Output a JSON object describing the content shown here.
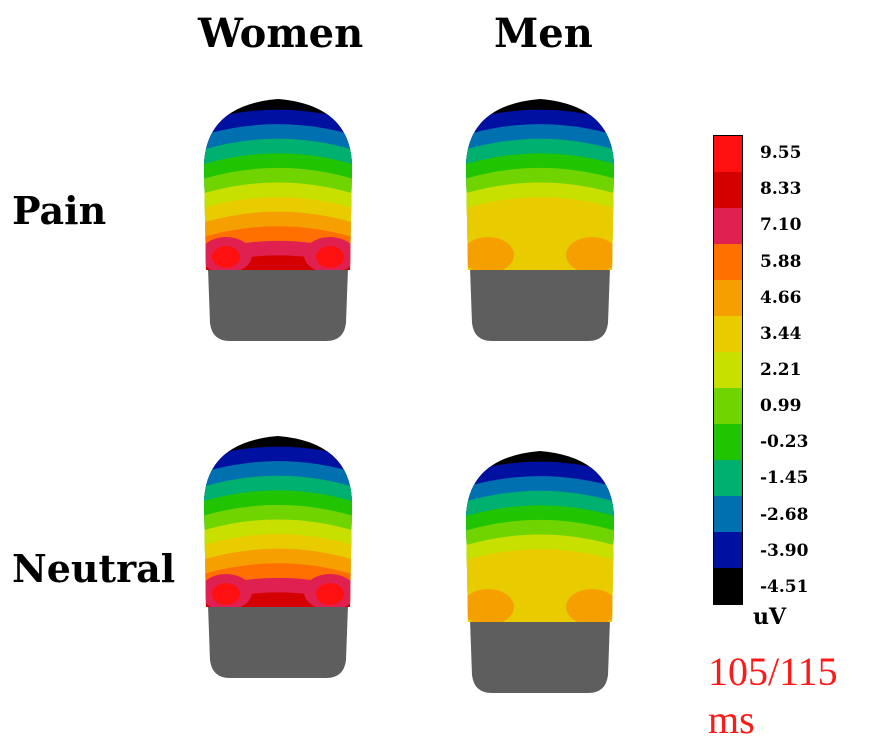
{
  "columns": [
    "Women",
    "Men"
  ],
  "rows": [
    "Pain",
    "Neutral"
  ],
  "colorbar": {
    "unit": "uV",
    "ticks": [
      "9.55",
      "8.33",
      "7.10",
      "5.88",
      "4.66",
      "3.44",
      "2.21",
      "0.99",
      "-0.23",
      "-1.45",
      "-2.68",
      "-3.90",
      "-4.51"
    ],
    "colors": [
      "#ff1010",
      "#d40000",
      "#e02050",
      "#ff7000",
      "#f5a000",
      "#e8cc00",
      "#c8e000",
      "#70d400",
      "#20c400",
      "#00b070",
      "#0070b0",
      "#0010a0",
      "#000000"
    ]
  },
  "time_label": "105/115 ms",
  "maps": [
    {
      "row": "Pain",
      "column": "Women",
      "profile": "strong"
    },
    {
      "row": "Pain",
      "column": "Men",
      "profile": "moderate"
    },
    {
      "row": "Neutral",
      "column": "Women",
      "profile": "strong"
    },
    {
      "row": "Neutral",
      "column": "Men",
      "profile": "moderate"
    }
  ]
}
